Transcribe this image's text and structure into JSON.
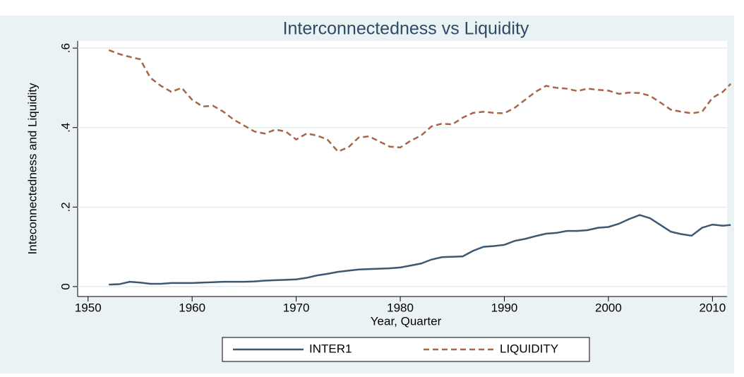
{
  "chart_data": {
    "type": "line",
    "title": "Interconnectedness vs Liquidity",
    "x_label": "Year, Quarter",
    "y_label": "Inteconnectedness and Liquidity",
    "x": [
      1952,
      1953,
      1954,
      1955,
      1956,
      1957,
      1958,
      1959,
      1960,
      1961,
      1962,
      1963,
      1964,
      1965,
      1966,
      1967,
      1968,
      1969,
      1970,
      1971,
      1972,
      1973,
      1974,
      1975,
      1976,
      1977,
      1978,
      1979,
      1980,
      1981,
      1982,
      1983,
      1984,
      1985,
      1986,
      1987,
      1988,
      1989,
      1990,
      1991,
      1992,
      1993,
      1994,
      1995,
      1996,
      1997,
      1998,
      1999,
      2000,
      2001,
      2002,
      2003,
      2004,
      2005,
      2006,
      2007,
      2008,
      2009,
      2010,
      2011,
      2011.75
    ],
    "series": [
      {
        "name": "INTER1",
        "color": "#3d5873",
        "dash": false,
        "values": [
          0.005,
          0.006,
          0.012,
          0.01,
          0.007,
          0.007,
          0.009,
          0.009,
          0.009,
          0.01,
          0.011,
          0.012,
          0.012,
          0.012,
          0.013,
          0.015,
          0.016,
          0.017,
          0.018,
          0.022,
          0.028,
          0.032,
          0.037,
          0.04,
          0.043,
          0.044,
          0.045,
          0.046,
          0.048,
          0.053,
          0.058,
          0.068,
          0.074,
          0.075,
          0.076,
          0.09,
          0.1,
          0.102,
          0.105,
          0.115,
          0.12,
          0.127,
          0.133,
          0.135,
          0.14,
          0.14,
          0.142,
          0.148,
          0.15,
          0.158,
          0.17,
          0.18,
          0.172,
          0.155,
          0.138,
          0.132,
          0.128,
          0.148,
          0.156,
          0.153,
          0.155
        ]
      },
      {
        "name": "LIQUIDITY",
        "color": "#a86548",
        "dash": true,
        "values": [
          0.595,
          0.585,
          0.578,
          0.572,
          0.525,
          0.505,
          0.49,
          0.5,
          0.47,
          0.453,
          0.455,
          0.44,
          0.42,
          0.405,
          0.39,
          0.385,
          0.395,
          0.39,
          0.37,
          0.385,
          0.38,
          0.37,
          0.34,
          0.35,
          0.375,
          0.378,
          0.365,
          0.352,
          0.35,
          0.367,
          0.38,
          0.403,
          0.41,
          0.408,
          0.425,
          0.437,
          0.44,
          0.437,
          0.436,
          0.45,
          0.47,
          0.49,
          0.505,
          0.5,
          0.498,
          0.492,
          0.498,
          0.495,
          0.493,
          0.485,
          0.488,
          0.487,
          0.48,
          0.463,
          0.445,
          0.44,
          0.436,
          0.44,
          0.475,
          0.49,
          0.51
        ]
      }
    ],
    "xlim": [
      1949,
      2011.4
    ],
    "xticks": [
      1950,
      1960,
      1970,
      1980,
      1990,
      2000,
      2010
    ],
    "ylim": [
      -0.025,
      0.618
    ],
    "yticks": [
      0,
      {
        "value": 0.2,
        "label": ".2"
      },
      {
        "value": 0.4,
        "label": ".4"
      },
      {
        "value": 0.6,
        "label": ".6"
      }
    ],
    "grid": true,
    "legend": "bottom"
  }
}
